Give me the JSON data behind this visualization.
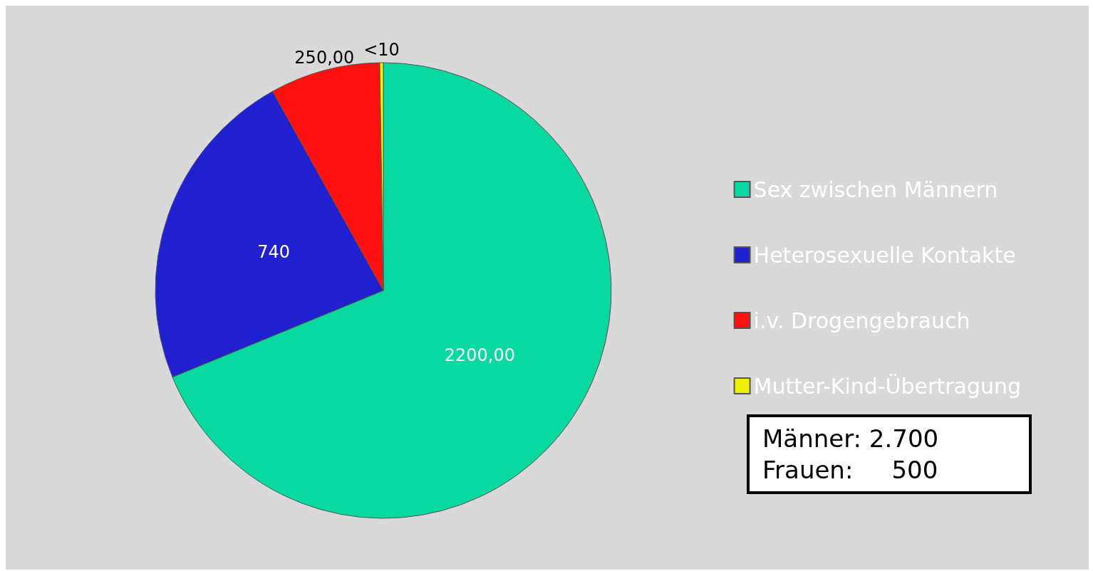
{
  "chart_data": {
    "type": "pie",
    "categories": [
      "Sex zwischen Männern",
      "Heterosexuelle Kontakte",
      "i.v. Drogengebrauch",
      "Mutter-Kind-Übertragung"
    ],
    "values": [
      2200,
      740,
      250,
      8
    ],
    "value_labels": [
      "2200,00",
      "740",
      "250,00",
      "<10"
    ],
    "colors": [
      "#08d9a0",
      "#2020d0",
      "#ff1010",
      "#f0f000"
    ],
    "legend": "right",
    "annotations": [
      "Männer: 2.700",
      "Frauen:     500"
    ]
  }
}
